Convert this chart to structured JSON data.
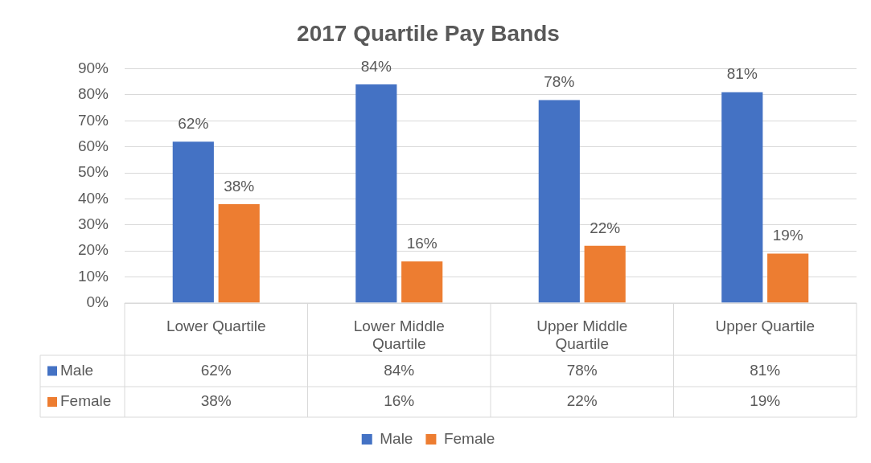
{
  "chart_data": {
    "type": "bar",
    "title": "2017 Quartile Pay Bands",
    "categories": [
      "Lower Quartile",
      "Lower Middle Quartile",
      "Upper Middle Quartile",
      "Upper Quartile"
    ],
    "series": [
      {
        "name": "Male",
        "color": "#4472c4",
        "values": [
          62,
          84,
          78,
          81
        ],
        "value_labels": [
          "62%",
          "84%",
          "78%",
          "81%"
        ]
      },
      {
        "name": "Female",
        "color": "#ed7d31",
        "values": [
          38,
          16,
          22,
          19
        ],
        "value_labels": [
          "38%",
          "16%",
          "22%",
          "19%"
        ]
      }
    ],
    "ylim": [
      0,
      90
    ],
    "yticks": [
      {
        "value": 0,
        "label": "0%"
      },
      {
        "value": 10,
        "label": "10%"
      },
      {
        "value": 20,
        "label": "20%"
      },
      {
        "value": 30,
        "label": "30%"
      },
      {
        "value": 40,
        "label": "40%"
      },
      {
        "value": 50,
        "label": "50%"
      },
      {
        "value": 60,
        "label": "60%"
      },
      {
        "value": 70,
        "label": "70%"
      },
      {
        "value": 80,
        "label": "80%"
      },
      {
        "value": 90,
        "label": "90%"
      }
    ],
    "grid": "y",
    "legend": "bottom"
  }
}
